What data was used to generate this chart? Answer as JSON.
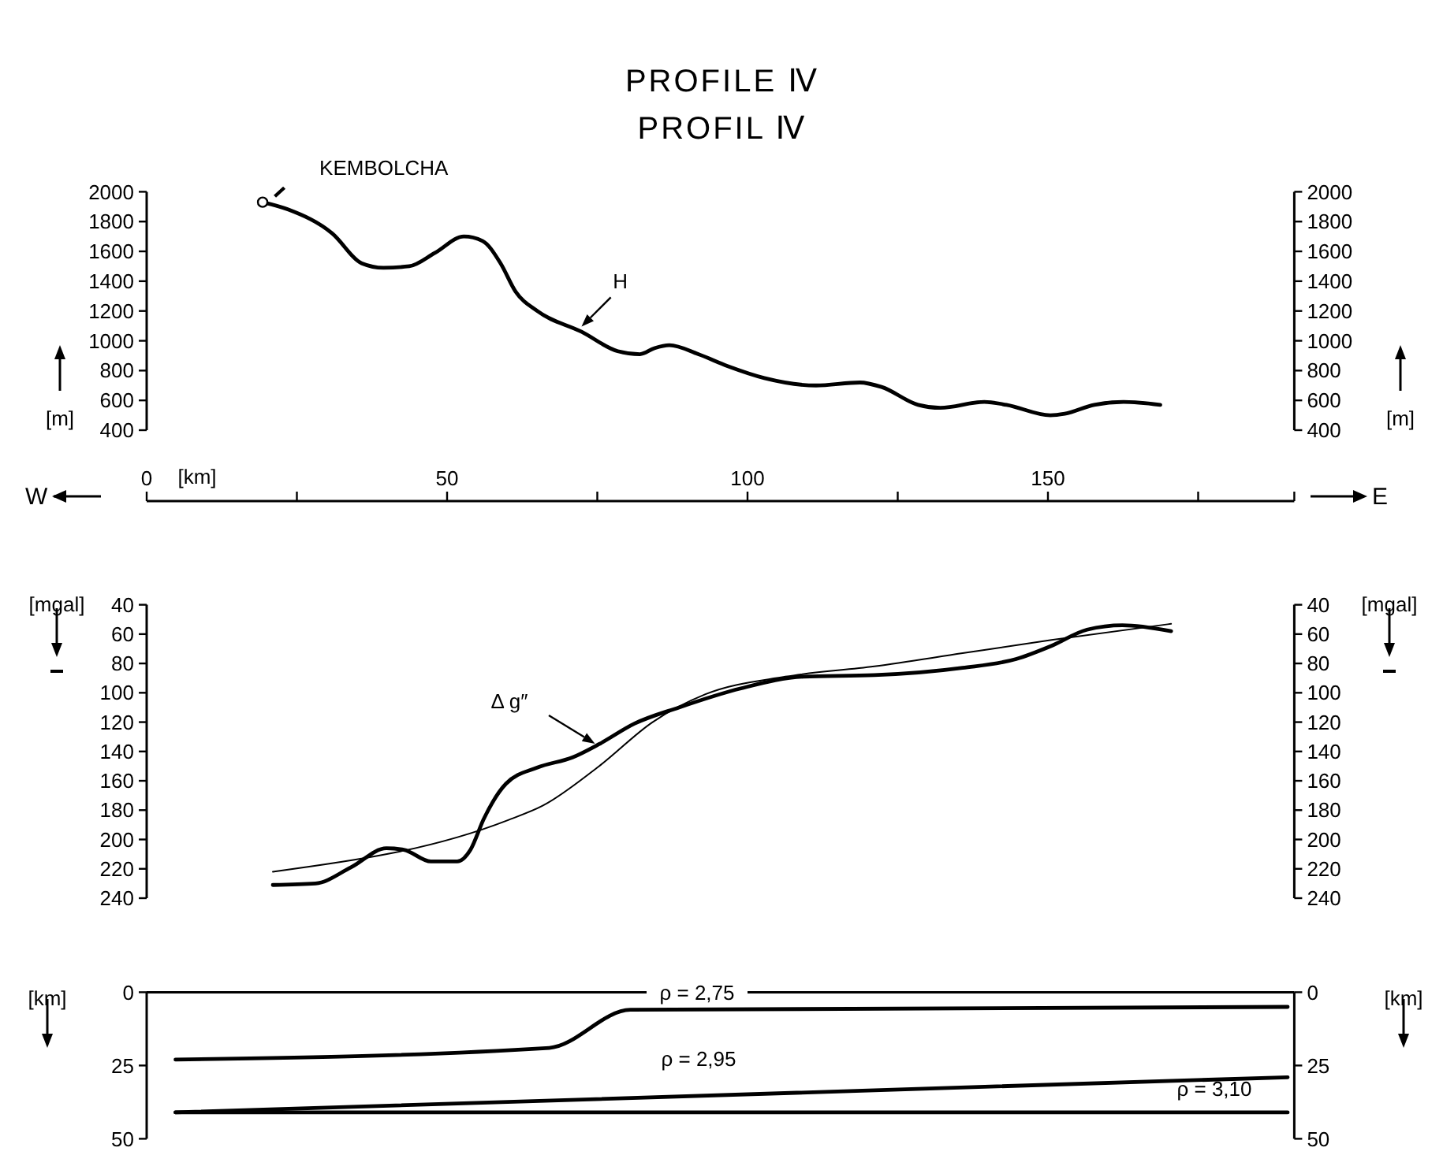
{
  "chart_data": [
    {
      "type": "line",
      "title": "PROFILE Ⅳ",
      "subtitle": "PROFIL Ⅳ",
      "xlabel": "[km]",
      "ylabel": "[m]",
      "y2label": "[m]",
      "xlim": [
        0,
        191
      ],
      "xticks": [
        0,
        {
          "value": 25,
          "label": null
        },
        50,
        {
          "value": 75,
          "label": null
        },
        100,
        {
          "value": 125,
          "label": null
        },
        150,
        {
          "value": 175,
          "label": null
        }
      ],
      "ylim": [
        400,
        2000
      ],
      "yticks": [
        400,
        600,
        800,
        1000,
        1200,
        1400,
        1600,
        1800,
        2000
      ],
      "y2lim": [
        400,
        2000
      ],
      "y2ticks": [
        400,
        600,
        800,
        1000,
        1200,
        1400,
        1600,
        1800,
        2000
      ],
      "series": [
        {
          "color": "#000000",
          "x": [
            19.3,
            23.6,
            30.9,
            35.8,
            39.4,
            43.7,
            48.0,
            52.8,
            55.9,
            58.9,
            61.4,
            65.0,
            72.4,
            78.4,
            82.1,
            84.5,
            87.0,
            91.8,
            96.7,
            102.8,
            111.4,
            118.7,
            122.3,
            128.4,
            132.1,
            139.4,
            143.1,
            150.4,
            152.8,
            157.7,
            162.6,
            168.7
          ],
          "values": [
            1930,
            1880,
            1720,
            1520,
            1490,
            1500,
            1590,
            1700,
            1670,
            1520,
            1330,
            1200,
            1060,
            930,
            910,
            950,
            970,
            910,
            830,
            750,
            700,
            720,
            690,
            570,
            550,
            590,
            570,
            500,
            510,
            570,
            590,
            570
          ]
        }
      ],
      "annotations": [
        {
          "text": "KEMBOLCHA",
          "x": 19.3,
          "y": 1930
        },
        {
          "text": "H",
          "x": 72,
          "y": 1080
        },
        "W",
        "E"
      ],
      "grid": false,
      "line_style": "solid"
    },
    {
      "type": "line",
      "ylabel": "[mgal]",
      "y2label": "[mgal]",
      "tick_labels": "y",
      "xlim": [
        0,
        191
      ],
      "ylim": [
        240,
        40
      ],
      "yticks": [
        40,
        60,
        80,
        100,
        120,
        140,
        160,
        180,
        200,
        220,
        240
      ],
      "y2lim": [
        240,
        40
      ],
      "y2ticks": [
        40,
        60,
        80,
        100,
        120,
        140,
        160,
        180,
        200,
        220,
        240
      ],
      "series": [
        {
          "color": "#000000",
          "x": [
            21.0,
            28.1,
            34.0,
            39.9,
            42.8,
            47.3,
            51.7,
            53.9,
            56.1,
            59.8,
            65.0,
            70.9,
            75.3,
            81.2,
            88.6,
            98.9,
            109.3,
            121.1,
            135.8,
            144.7,
            150.6,
            156.5,
            162.4,
            170.5
          ],
          "values": [
            231,
            230,
            219,
            206,
            207,
            215,
            215,
            207,
            186,
            162,
            151,
            144,
            135,
            121,
            110,
            97,
            89,
            88,
            83,
            77,
            68,
            57,
            54,
            58
          ]
        },
        {
          "color": "#000000",
          "x": [
            21.0,
            60.0,
            65.9,
            75.3,
            84.2,
            93.0,
            106.3,
            121.1,
            135.8,
            150.6,
            170.5
          ],
          "values": [
            222,
            187,
            177,
            150,
            120,
            101,
            89,
            82,
            73,
            64,
            53
          ]
        }
      ],
      "annotations": [
        "Δ g″"
      ],
      "grid": false,
      "line_style": "solid"
    },
    {
      "type": "line",
      "ylabel": "[km]",
      "y2label": "[km]",
      "tick_labels": "y",
      "xlim": [
        0,
        191
      ],
      "ylim": [
        50,
        0
      ],
      "yticks": [
        0,
        25,
        50
      ],
      "y2lim": [
        50,
        0
      ],
      "y2ticks": [
        0,
        25,
        50
      ],
      "series": [
        {
          "color": "#000000",
          "x": [
            4.8,
            67.0,
            80.5,
            189.9
          ],
          "values": [
            23,
            19,
            6,
            5
          ]
        },
        {
          "color": "#000000",
          "x": [
            4.8,
            189.9
          ],
          "values": [
            41,
            29
          ]
        },
        {
          "color": "#000000",
          "x": [
            4.8,
            189.9
          ],
          "values": [
            41,
            41
          ]
        }
      ],
      "annotations": [
        "ρ = 2,75",
        "ρ = 2,95",
        "ρ = 3,10"
      ],
      "grid": false,
      "line_style": "solid"
    }
  ]
}
